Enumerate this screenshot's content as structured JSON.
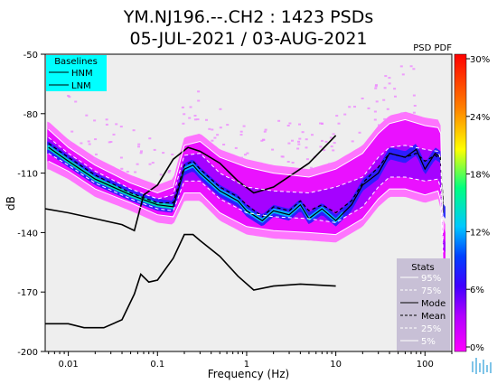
{
  "title_line1": "YM.NJ196.--.CH2 : 1423 PSDs",
  "title_line2": "05-JUL-2021 / 03-AUG-2021",
  "psd_pdf_label": "PSD PDF",
  "baselines": {
    "title": "Baselines",
    "items": [
      "HNM",
      "LNM"
    ]
  },
  "stats": {
    "title": "Stats",
    "items": [
      "95%",
      "75%",
      "Mode",
      "Mean",
      "25%",
      "5%"
    ]
  },
  "colors": {
    "background_plot": "#eeeeee",
    "baselines_box": "#00ffff",
    "stats_box": "#c8c0d6",
    "noise_models": "#000000",
    "percentile_lines": "#ffffff"
  },
  "chart_data": {
    "type": "heatmap",
    "xlabel": "Frequency (Hz)",
    "ylabel": "dB",
    "xscale": "log",
    "xlim": [
      0.0055,
      200
    ],
    "ylim": [
      -200,
      -50
    ],
    "xticks": [
      {
        "value": 0.01,
        "label": "0.01"
      },
      {
        "value": 0.1,
        "label": "0.1"
      },
      {
        "value": 1,
        "label": "1"
      },
      {
        "value": 10,
        "label": "10"
      },
      {
        "value": 100,
        "label": "100"
      }
    ],
    "yticks": [
      {
        "value": -50,
        "label": "-50"
      },
      {
        "value": -80,
        "label": "-80"
      },
      {
        "value": -110,
        "label": "-110"
      },
      {
        "value": -140,
        "label": "-140"
      },
      {
        "value": -170,
        "label": "-170"
      },
      {
        "value": -200,
        "label": "-200"
      }
    ],
    "colorbar": {
      "ticks": [
        "30%",
        "24%",
        "18%",
        "12%",
        "6%",
        "0%"
      ],
      "range": [
        0,
        30
      ],
      "colormap": [
        "#ff00ff",
        "#8000ff",
        "#0000ff",
        "#00c8ff",
        "#00ff80",
        "#ffff00",
        "#ff8000",
        "#ff0000"
      ]
    },
    "series": [
      {
        "name": "HNM",
        "x": [
          0.0055,
          0.01,
          0.02,
          0.04,
          0.055,
          0.07,
          0.1,
          0.15,
          0.22,
          0.3,
          0.5,
          0.8,
          1.2,
          2,
          5,
          10
        ],
        "y": [
          -128,
          -130,
          -133,
          -136,
          -139,
          -121,
          -116,
          -103,
          -97,
          -99,
          -105,
          -114,
          -120,
          -117,
          -105,
          -91
        ]
      },
      {
        "name": "LNM",
        "x": [
          0.0055,
          0.01,
          0.015,
          0.025,
          0.04,
          0.055,
          0.065,
          0.08,
          0.1,
          0.15,
          0.2,
          0.25,
          0.3,
          0.5,
          0.8,
          1.2,
          2,
          4,
          10
        ],
        "y": [
          -186,
          -186,
          -188,
          -188,
          -184,
          -171,
          -161,
          -165,
          -164,
          -153,
          -141,
          -141,
          -144,
          -152,
          -162,
          -169,
          -167,
          -166,
          -167
        ]
      },
      {
        "name": "Mode",
        "x": [
          0.006,
          0.01,
          0.02,
          0.05,
          0.1,
          0.15,
          0.18,
          0.2,
          0.25,
          0.3,
          0.5,
          0.8,
          1,
          1.5,
          2,
          3,
          4,
          5,
          7,
          10,
          15,
          20,
          30,
          40,
          60,
          80,
          100,
          130,
          150,
          160
        ],
        "y": [
          -97,
          -104,
          -113,
          -121,
          -126,
          -127,
          -115,
          -108,
          -106,
          -110,
          -119,
          -124,
          -129,
          -134,
          -129,
          -131,
          -126,
          -133,
          -128,
          -134,
          -126,
          -116,
          -110,
          -100,
          -102,
          -98,
          -108,
          -100,
          -102,
          -130
        ]
      },
      {
        "name": "Mean",
        "x": [
          0.006,
          0.01,
          0.02,
          0.05,
          0.1,
          0.15,
          0.18,
          0.2,
          0.25,
          0.3,
          0.5,
          0.8,
          1,
          1.5,
          2,
          3,
          4,
          5,
          7,
          10,
          15,
          20,
          30,
          40,
          60,
          80,
          100,
          130,
          150,
          160
        ],
        "y": [
          -95,
          -102,
          -111,
          -120,
          -125,
          -125,
          -113,
          -106,
          -104,
          -108,
          -117,
          -122,
          -126,
          -132,
          -127,
          -129,
          -124,
          -129,
          -126,
          -130,
          -124,
          -115,
          -107,
          -100,
          -102,
          -100,
          -104,
          -101,
          -103,
          -125
        ]
      },
      {
        "name": "95%",
        "x": [
          0.006,
          0.01,
          0.02,
          0.05,
          0.1,
          0.15,
          0.2,
          0.3,
          0.5,
          1,
          2,
          5,
          10,
          20,
          30,
          40,
          60,
          100,
          140,
          150,
          160
        ],
        "y": [
          -88,
          -97,
          -106,
          -115,
          -120,
          -117,
          -96,
          -94,
          -102,
          -107,
          -110,
          -112,
          -108,
          -100,
          -90,
          -85,
          -83,
          -86,
          -87,
          -90,
          -140
        ]
      },
      {
        "name": "75%",
        "x": [
          0.006,
          0.01,
          0.02,
          0.05,
          0.1,
          0.15,
          0.2,
          0.3,
          0.5,
          1,
          2,
          5,
          10,
          20,
          30,
          40,
          60,
          100,
          140,
          150,
          160
        ],
        "y": [
          -92,
          -100,
          -109,
          -118,
          -123,
          -121,
          -101,
          -100,
          -110,
          -117,
          -119,
          -120,
          -117,
          -112,
          -102,
          -97,
          -96,
          -98,
          -99,
          -103,
          -145
        ]
      },
      {
        "name": "25%",
        "x": [
          0.006,
          0.01,
          0.02,
          0.05,
          0.1,
          0.15,
          0.2,
          0.3,
          0.5,
          1,
          2,
          5,
          10,
          20,
          30,
          40,
          60,
          100,
          140,
          150,
          160
        ],
        "y": [
          -100,
          -106,
          -115,
          -123,
          -128,
          -129,
          -114,
          -114,
          -123,
          -130,
          -132,
          -133,
          -135,
          -127,
          -117,
          -112,
          -112,
          -114,
          -113,
          -118,
          -150
        ]
      },
      {
        "name": "5%",
        "x": [
          0.006,
          0.01,
          0.02,
          0.05,
          0.1,
          0.15,
          0.2,
          0.3,
          0.5,
          1,
          2,
          5,
          10,
          20,
          30,
          40,
          60,
          100,
          140,
          150,
          160
        ],
        "y": [
          -104,
          -109,
          -118,
          -125,
          -131,
          -132,
          -120,
          -120,
          -130,
          -137,
          -139,
          -140,
          -141,
          -133,
          -123,
          -118,
          -118,
          -121,
          -119,
          -124,
          -158
        ]
      }
    ]
  }
}
